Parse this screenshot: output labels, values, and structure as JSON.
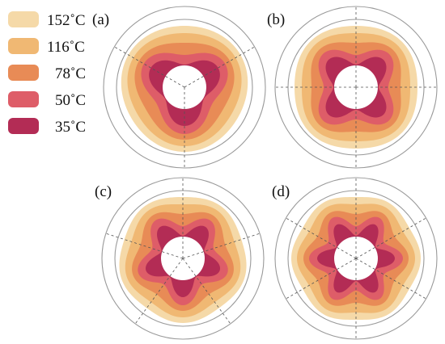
{
  "legend": [
    {
      "label": "152˚C",
      "color": "#f5d9a8"
    },
    {
      "label": "116˚C",
      "color": "#f0b873"
    },
    {
      "label": "78˚C",
      "color": "#e88b56"
    },
    {
      "label": "50˚C",
      "color": "#de5d68"
    },
    {
      "label": "35˚C",
      "color": "#b32c55"
    }
  ],
  "panels": [
    {
      "label": "(a)",
      "lobes": 3
    },
    {
      "label": "(b)",
      "lobes": 4
    },
    {
      "label": "(c)",
      "lobes": 5
    },
    {
      "label": "(d)",
      "lobes": 6
    }
  ]
}
